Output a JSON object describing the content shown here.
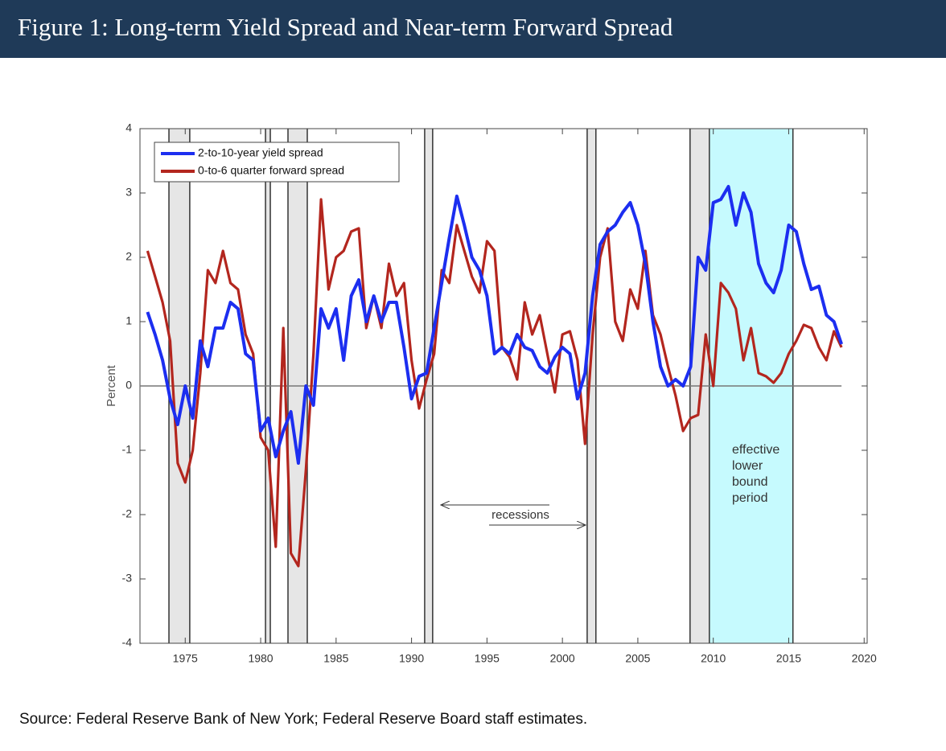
{
  "header": {
    "title": "Figure 1: Long-term Yield Spread and Near-term Forward Spread"
  },
  "source": "Source: Federal Reserve Bank of New York; Federal Reserve Board staff estimates.",
  "chart_data": {
    "type": "line",
    "ylabel": "Percent",
    "xlim": [
      1972,
      2020.2
    ],
    "ylim": [
      -4,
      4
    ],
    "xticks": [
      1975,
      1980,
      1985,
      1990,
      1995,
      2000,
      2005,
      2010,
      2015,
      2020
    ],
    "yticks": [
      -4,
      -3,
      -2,
      -1,
      0,
      1,
      2,
      3,
      4
    ],
    "legend": "upper left",
    "recessions_label": "recessions",
    "recessions": [
      [
        1973.92,
        1975.3
      ],
      [
        1980.32,
        1980.64
      ],
      [
        1981.81,
        1983.09
      ],
      [
        1990.87,
        1991.4
      ],
      [
        2001.64,
        2002.22
      ],
      [
        2008.46,
        2009.74
      ]
    ],
    "elb_period": [
      2009.74,
      2015.28
    ],
    "elb_label": [
      "effective",
      "lower",
      "bound",
      "period"
    ],
    "x": [
      1972.5,
      1973,
      1973.5,
      1974,
      1974.5,
      1975,
      1975.5,
      1976,
      1976.5,
      1977,
      1977.5,
      1978,
      1978.5,
      1979,
      1979.5,
      1980,
      1980.5,
      1981,
      1981.5,
      1982,
      1982.5,
      1983,
      1983.5,
      1984,
      1984.5,
      1985,
      1985.5,
      1986,
      1986.5,
      1987,
      1987.5,
      1988,
      1988.5,
      1989,
      1989.5,
      1990,
      1990.5,
      1991,
      1991.5,
      1992,
      1992.5,
      1993,
      1993.5,
      1994,
      1994.5,
      1995,
      1995.5,
      1996,
      1996.5,
      1997,
      1997.5,
      1998,
      1998.5,
      1999,
      1999.5,
      2000,
      2000.5,
      2001,
      2001.5,
      2002,
      2002.5,
      2003,
      2003.5,
      2004,
      2004.5,
      2005,
      2005.5,
      2006,
      2006.5,
      2007,
      2007.5,
      2008,
      2008.5,
      2009,
      2009.5,
      2010,
      2010.5,
      2011,
      2011.5,
      2012,
      2012.5,
      2013,
      2013.5,
      2014,
      2014.5,
      2015,
      2015.5,
      2016,
      2016.5,
      2017,
      2017.5,
      2018,
      2018.5
    ],
    "series": [
      {
        "name": "2-to-10-year yield spread",
        "color": "#1c2ef0",
        "values": [
          1.15,
          0.8,
          0.4,
          -0.2,
          -0.6,
          0.0,
          -0.5,
          0.7,
          0.3,
          0.9,
          0.9,
          1.3,
          1.2,
          0.5,
          0.4,
          -0.7,
          -0.5,
          -1.1,
          -0.7,
          -0.4,
          -1.2,
          0.0,
          -0.3,
          1.2,
          0.9,
          1.2,
          0.4,
          1.4,
          1.65,
          1.0,
          1.4,
          1.0,
          1.3,
          1.3,
          0.6,
          -0.2,
          0.15,
          0.2,
          0.9,
          1.6,
          2.3,
          2.95,
          2.5,
          2.0,
          1.8,
          1.4,
          0.5,
          0.6,
          0.5,
          0.8,
          0.6,
          0.55,
          0.3,
          0.2,
          0.45,
          0.6,
          0.5,
          -0.2,
          0.2,
          1.4,
          2.2,
          2.4,
          2.5,
          2.7,
          2.85,
          2.5,
          1.9,
          1.0,
          0.3,
          0.0,
          0.1,
          0.0,
          0.3,
          2.0,
          1.8,
          2.85,
          2.9,
          3.1,
          2.5,
          3.0,
          2.7,
          1.9,
          1.6,
          1.45,
          1.8,
          2.5,
          2.4,
          1.9,
          1.5,
          1.55,
          1.1,
          1.0,
          0.65
        ]
      },
      {
        "name": "0-to-6 quarter forward spread",
        "color": "#b3261e",
        "values": [
          2.1,
          1.7,
          1.3,
          0.7,
          -1.2,
          -1.5,
          -1.0,
          0.2,
          1.8,
          1.6,
          2.1,
          1.6,
          1.5,
          0.8,
          0.5,
          -0.8,
          -1.0,
          -2.5,
          0.9,
          -2.6,
          -2.8,
          -1.3,
          0.5,
          2.9,
          1.5,
          2.0,
          2.1,
          2.4,
          2.45,
          0.9,
          1.4,
          0.9,
          1.9,
          1.4,
          1.6,
          0.4,
          -0.35,
          0.1,
          0.5,
          1.8,
          1.6,
          2.5,
          2.1,
          1.7,
          1.45,
          2.25,
          2.1,
          0.6,
          0.45,
          0.1,
          1.3,
          0.8,
          1.1,
          0.5,
          -0.1,
          0.8,
          0.85,
          0.4,
          -0.9,
          0.8,
          2.0,
          2.45,
          1.0,
          0.7,
          1.5,
          1.2,
          2.1,
          1.1,
          0.8,
          0.3,
          -0.15,
          -0.7,
          -0.5,
          -0.45,
          0.8,
          0.0,
          1.6,
          1.45,
          1.2,
          0.4,
          0.9,
          0.2,
          0.15,
          0.05,
          0.2,
          0.5,
          0.7,
          0.95,
          0.9,
          0.6,
          0.4,
          0.85,
          0.6
        ]
      }
    ]
  }
}
